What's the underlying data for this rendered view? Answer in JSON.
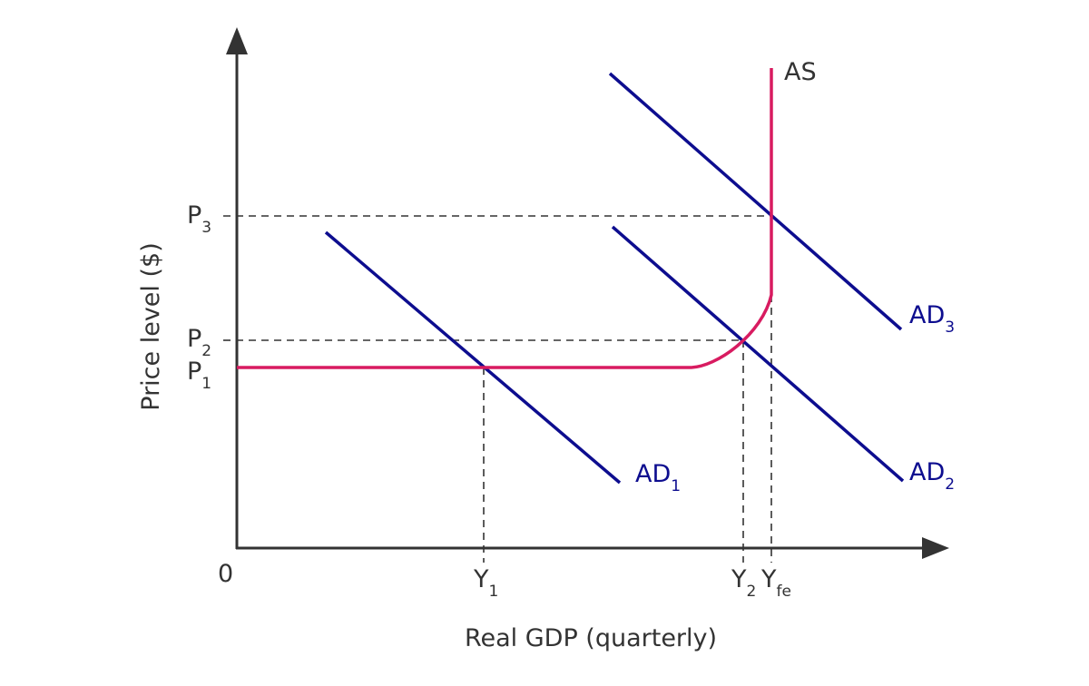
{
  "axes": {
    "x_label": "Real GDP (quarterly)",
    "y_label": "Price level ($)",
    "origin": "0"
  },
  "x_ticks": {
    "y1": {
      "main": "Y",
      "sub": "1"
    },
    "y2": {
      "main": "Y",
      "sub": "2"
    },
    "yfe": {
      "main": "Y",
      "sub": "fe"
    }
  },
  "y_ticks": {
    "p1": {
      "main": "P",
      "sub": "1"
    },
    "p2": {
      "main": "P",
      "sub": "2"
    },
    "p3": {
      "main": "P",
      "sub": "3"
    }
  },
  "curves": {
    "as": {
      "main": "AS",
      "color": "#d81b60"
    },
    "ad1": {
      "main": "AD",
      "sub": "1",
      "color": "#0d0d8f"
    },
    "ad2": {
      "main": "AD",
      "sub": "2",
      "color": "#0d0d8f"
    },
    "ad3": {
      "main": "AD",
      "sub": "3",
      "color": "#0d0d8f"
    }
  },
  "colors": {
    "axis": "#333333",
    "as_curve": "#d81b60",
    "ad_curves": "#0d0d8f"
  }
}
